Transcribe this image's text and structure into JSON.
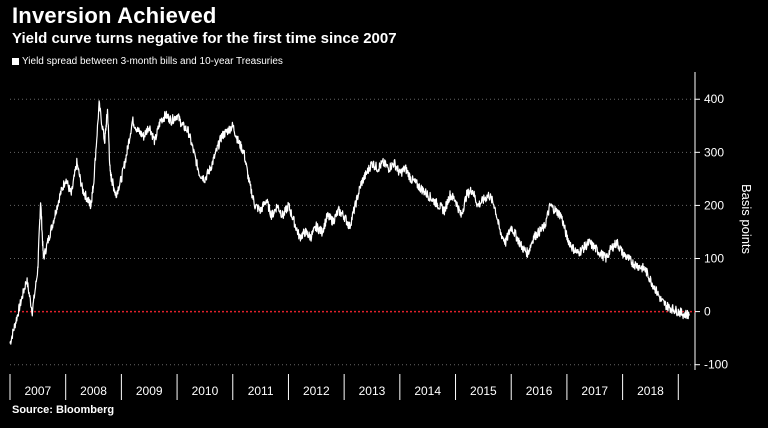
{
  "header": {
    "title": "Inversion Achieved",
    "subtitle": "Yield curve turns negative for the first time since 2007"
  },
  "footer": {
    "source": "Source: Bloomberg"
  },
  "colors": {
    "background": "#000000",
    "series": "#ffffff",
    "zero_line": "#e0202a",
    "grid": "#666666"
  },
  "chart_data": {
    "type": "line",
    "title": "Inversion Achieved",
    "subtitle": "Yield curve turns negative for the first time since 2007",
    "ylabel": "Basis points",
    "xlabel": "",
    "ylim": [
      -110,
      440
    ],
    "xlim": [
      2007.0,
      2019.3
    ],
    "yticks": [
      -100,
      0,
      100,
      200,
      300,
      400
    ],
    "ytick_labels": [
      "-100",
      "0",
      "100",
      "200",
      "300",
      "400"
    ],
    "xtick_labels": [
      "2007",
      "2008",
      "2009",
      "2010",
      "2011",
      "2012",
      "2013",
      "2014",
      "2015",
      "2016",
      "2017",
      "2018"
    ],
    "reference_line": {
      "y": 0,
      "style": "dotted"
    },
    "grid": "horizontal dotted",
    "series": [
      {
        "name": "Yield spread between 3-month bills and 10-year Treasuries",
        "x": [
          2007.0,
          2007.1,
          2007.2,
          2007.3,
          2007.4,
          2007.5,
          2007.55,
          2007.6,
          2007.7,
          2007.8,
          2007.9,
          2008.0,
          2008.1,
          2008.2,
          2008.3,
          2008.4,
          2008.45,
          2008.5,
          2008.6,
          2008.7,
          2008.75,
          2008.8,
          2008.85,
          2008.9,
          2009.0,
          2009.1,
          2009.2,
          2009.3,
          2009.4,
          2009.5,
          2009.6,
          2009.7,
          2009.8,
          2009.9,
          2010.0,
          2010.1,
          2010.2,
          2010.3,
          2010.4,
          2010.5,
          2010.6,
          2010.7,
          2010.8,
          2010.9,
          2011.0,
          2011.1,
          2011.2,
          2011.3,
          2011.4,
          2011.5,
          2011.6,
          2011.7,
          2011.8,
          2011.9,
          2012.0,
          2012.1,
          2012.2,
          2012.3,
          2012.4,
          2012.5,
          2012.6,
          2012.7,
          2012.8,
          2012.9,
          2013.0,
          2013.1,
          2013.2,
          2013.3,
          2013.4,
          2013.5,
          2013.6,
          2013.7,
          2013.8,
          2013.9,
          2014.0,
          2014.1,
          2014.2,
          2014.3,
          2014.4,
          2014.5,
          2014.6,
          2014.7,
          2014.8,
          2014.9,
          2015.0,
          2015.1,
          2015.2,
          2015.3,
          2015.4,
          2015.5,
          2015.6,
          2015.7,
          2015.8,
          2015.9,
          2016.0,
          2016.1,
          2016.2,
          2016.3,
          2016.4,
          2016.5,
          2016.6,
          2016.7,
          2016.8,
          2016.9,
          2017.0,
          2017.1,
          2017.2,
          2017.3,
          2017.4,
          2017.5,
          2017.6,
          2017.7,
          2017.8,
          2017.9,
          2018.0,
          2018.1,
          2018.2,
          2018.3,
          2018.4,
          2018.5,
          2018.6,
          2018.7,
          2018.8,
          2018.9,
          2019.0,
          2019.1,
          2019.2
        ],
        "values": [
          -60,
          -20,
          20,
          60,
          0,
          80,
          210,
          100,
          140,
          180,
          220,
          250,
          220,
          280,
          230,
          210,
          200,
          240,
          390,
          320,
          380,
          260,
          240,
          220,
          250,
          300,
          360,
          340,
          330,
          350,
          320,
          360,
          370,
          360,
          370,
          350,
          340,
          300,
          260,
          250,
          270,
          300,
          330,
          340,
          350,
          320,
          300,
          240,
          200,
          190,
          210,
          180,
          200,
          180,
          200,
          170,
          140,
          150,
          140,
          160,
          150,
          180,
          170,
          190,
          180,
          160,
          200,
          240,
          260,
          280,
          270,
          280,
          270,
          280,
          260,
          270,
          250,
          240,
          230,
          220,
          210,
          200,
          190,
          220,
          210,
          180,
          220,
          230,
          200,
          210,
          220,
          200,
          150,
          130,
          160,
          140,
          120,
          110,
          140,
          150,
          160,
          200,
          190,
          180,
          140,
          120,
          110,
          120,
          130,
          120,
          110,
          100,
          120,
          130,
          110,
          100,
          90,
          85,
          80,
          60,
          40,
          20,
          10,
          5,
          0,
          -5,
          -5
        ]
      }
    ]
  }
}
